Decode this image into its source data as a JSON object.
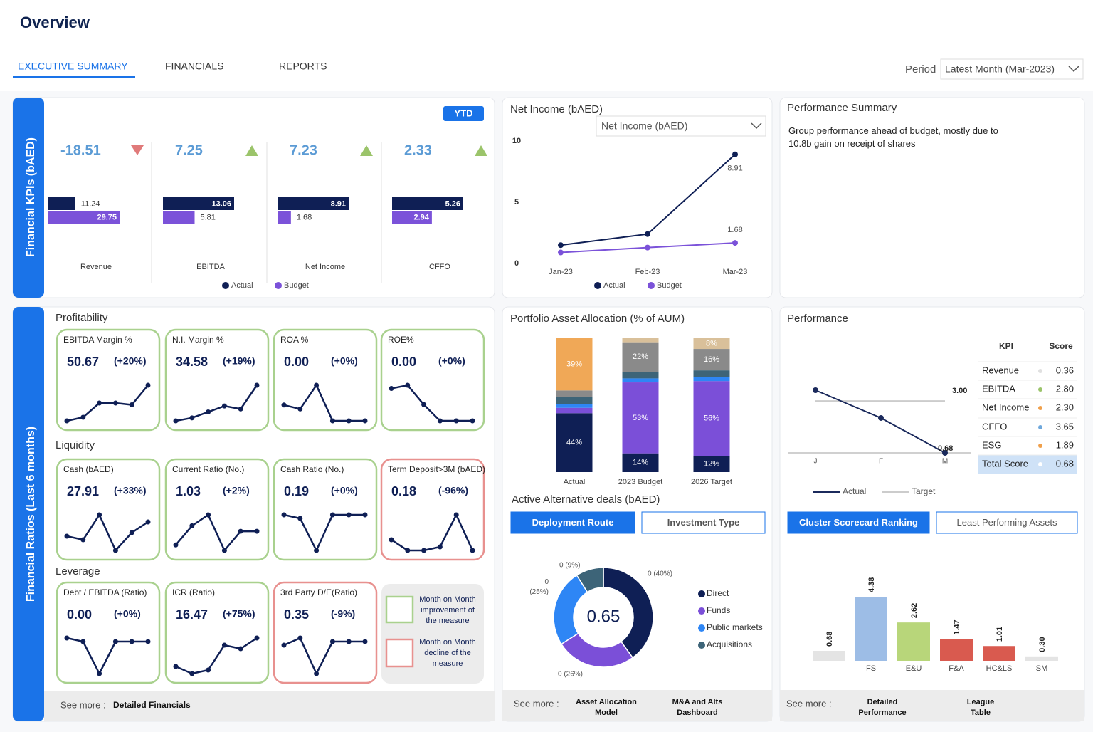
{
  "header": {
    "title": "Overview",
    "tabs": [
      "EXECUTIVE SUMMARY",
      "FINANCIALS",
      "REPORTS"
    ],
    "active_tab": 0,
    "period_label": "Period",
    "period_value": "Latest Month (Mar-2023)"
  },
  "financial_kpis": {
    "side_title": "Financial KPIs (bAED)",
    "badge": "YTD",
    "items": [
      {
        "name": "Revenue",
        "value": -18.51,
        "trend": "down",
        "actual": 11.24,
        "budget": 29.75
      },
      {
        "name": "EBITDA",
        "value": 7.25,
        "trend": "up",
        "actual": 13.06,
        "budget": 5.81
      },
      {
        "name": "Net Income",
        "value": 7.23,
        "trend": "up",
        "actual": 8.91,
        "budget": 1.68
      },
      {
        "name": "CFFO",
        "value": 2.33,
        "trend": "up",
        "actual": 5.26,
        "budget": 2.94
      }
    ],
    "legend": [
      {
        "name": "Actual",
        "color": "#0f1f55"
      },
      {
        "name": "Budget",
        "color": "#7b52d9"
      }
    ]
  },
  "net_income": {
    "title": "Net Income (bAED)",
    "selector": "Net Income (bAED)",
    "chart_data": {
      "type": "line",
      "categories": [
        "Jan-23",
        "Feb-23",
        "Mar-23"
      ],
      "series": [
        {
          "name": "Actual",
          "color": "#0f1f55",
          "values": [
            1.5,
            2.4,
            8.91
          ],
          "value_labels": [
            null,
            null,
            "8.91"
          ]
        },
        {
          "name": "Budget",
          "color": "#7b52d9",
          "values": [
            0.9,
            1.3,
            1.68
          ],
          "value_labels": [
            null,
            null,
            "1.68"
          ]
        }
      ],
      "ylim": [
        0,
        10
      ],
      "yticks": [
        0,
        5,
        10
      ]
    }
  },
  "performance_summary": {
    "title": "Performance Summary",
    "text": "Group performance ahead of budget, mostly due to 10.8b gain on receipt of shares"
  },
  "financial_ratios": {
    "side_title": "Financial Ratios (Last 6 months)",
    "groups": [
      {
        "title": "Profitability",
        "cards": [
          {
            "name": "EBITDA Margin %",
            "value": "50.67",
            "change": "(+20%)",
            "status": "improve",
            "trend": [
              0,
              1,
              5,
              5,
              4.5,
              10
            ]
          },
          {
            "name": "N.I. Margin %",
            "value": "34.58",
            "change": "(+19%)",
            "status": "improve",
            "trend": [
              0,
              1,
              3,
              5,
              4,
              12
            ]
          },
          {
            "name": "ROA %",
            "value": "0.00",
            "change": "(+0%)",
            "status": "improve",
            "trend": [
              4,
              3,
              9,
              0,
              0,
              0
            ]
          },
          {
            "name": "ROE%",
            "value": "0.00",
            "change": "(+0%)",
            "status": "improve",
            "trend": [
              10,
              11,
              5,
              0,
              0,
              0
            ]
          }
        ]
      },
      {
        "title": "Liquidity",
        "cards": [
          {
            "name": "Cash (bAED)",
            "value": "27.91",
            "change": "(+33%)",
            "status": "improve",
            "trend": [
              4,
              3,
              10,
              0,
              5,
              8
            ]
          },
          {
            "name": "Current Ratio (No.)",
            "value": "1.03",
            "change": "(+2%)",
            "status": "improve",
            "trend": [
              2,
              9,
              13,
              0,
              7,
              7
            ]
          },
          {
            "name": "Cash Ratio (No.)",
            "value": "0.19",
            "change": "(+0%)",
            "status": "improve",
            "trend": [
              10,
              9,
              0,
              10,
              10,
              10
            ]
          },
          {
            "name": "Term Deposit>3M (bAED)",
            "value": "0.18",
            "change": "(-96%)",
            "status": "decline",
            "trend": [
              3,
              0,
              0,
              1,
              10,
              0
            ]
          }
        ]
      },
      {
        "title": "Leverage",
        "cards": [
          {
            "name": "Debt / EBITDA (Ratio)",
            "value": "0.00",
            "change": "(+0%)",
            "status": "improve",
            "trend": [
              10,
              9,
              0,
              9,
              9,
              9
            ]
          },
          {
            "name": "ICR (Ratio)",
            "value": "16.47",
            "change": "(+75%)",
            "status": "improve",
            "trend": [
              2,
              0,
              1,
              8,
              7,
              10
            ]
          },
          {
            "name": "3rd Party D/E(Ratio)",
            "value": "0.35",
            "change": "(-9%)",
            "status": "decline",
            "trend": [
              8,
              10,
              0,
              9,
              9,
              9
            ]
          }
        ]
      }
    ],
    "legend": [
      "Month on Month improvement of the measure",
      "Month on Month decline of the measure"
    ],
    "footer": {
      "label": "See more :",
      "links": [
        "Detailed Financials"
      ]
    }
  },
  "portfolio": {
    "title": "Portfolio Asset Allocation (% of AUM)",
    "chart_data": {
      "type": "stacked_bar",
      "categories": [
        "Actual",
        "2023 Budget",
        "2026 Target"
      ],
      "series": [
        {
          "color": "#0f1f55",
          "values": [
            44,
            14,
            12
          ],
          "value_labels": [
            "44%",
            "14%",
            "12%"
          ]
        },
        {
          "color": "#7b4fd8",
          "values": [
            4,
            53,
            56
          ],
          "value_labels": [
            null,
            "53%",
            "56%"
          ]
        },
        {
          "color": "#2e86f5",
          "values": [
            3,
            3,
            3
          ],
          "value_labels": [
            null,
            null,
            null
          ]
        },
        {
          "color": "#3d6478",
          "values": [
            5,
            5,
            5
          ],
          "value_labels": [
            null,
            null,
            null
          ]
        },
        {
          "color": "#8a8a8a",
          "values": [
            5,
            22,
            16
          ],
          "value_labels": [
            null,
            "22%",
            "16%"
          ]
        },
        {
          "color": "#f0a857",
          "values": [
            39,
            0,
            0
          ],
          "value_labels": [
            "39%",
            null,
            null
          ]
        },
        {
          "color": "#d9c09a",
          "values": [
            0,
            3,
            8
          ],
          "value_labels": [
            null,
            null,
            "8%"
          ]
        }
      ]
    }
  },
  "alternative_deals": {
    "title": "Active Alternative deals (bAED)",
    "buttons": [
      "Deployment Route",
      "Investment Type"
    ],
    "active_button": 0,
    "chart_data": {
      "type": "donut",
      "center_label": "0.65",
      "categories": [
        "Direct",
        "Funds",
        "Public markets",
        "Acquisitions"
      ],
      "colors": [
        "#0f1f55",
        "#7b4fd8",
        "#2e86f5",
        "#3d6478"
      ],
      "values": [
        40,
        26,
        25,
        9
      ],
      "value_labels": [
        "0 (40%)",
        "0 (26%)",
        "0 (25%)",
        "0 (9%)"
      ]
    },
    "footer": {
      "label": "See more :",
      "links": [
        "Asset Allocation Model",
        "M&A and Alts Dashboard"
      ]
    }
  },
  "performance": {
    "title": "Performance",
    "chart_data": {
      "type": "line",
      "categories": [
        "J",
        "F",
        "M"
      ],
      "series": [
        {
          "name": "Actual",
          "color": "#1b2a5c",
          "values": [
            3.48,
            2.24,
            0.68
          ],
          "value_labels": [
            null,
            null,
            "0.68"
          ]
        },
        {
          "name": "Target",
          "color": "#cccccc",
          "values": [
            3,
            3,
            3
          ],
          "value_labels": [
            null,
            null,
            "3.00"
          ]
        }
      ]
    },
    "table": {
      "columns": [
        "KPI",
        "Score"
      ],
      "rows": [
        [
          "Revenue",
          "0.36"
        ],
        [
          "EBITDA",
          "2.80"
        ],
        [
          "Net Income",
          "2.30"
        ],
        [
          "CFFO",
          "3.65"
        ],
        [
          "ESG",
          "1.89"
        ],
        [
          "Total Score",
          "0.68"
        ]
      ],
      "dot_colors": [
        "#e0e0e0",
        "#9bc46a",
        "#f0a04b",
        "#6fa8dc",
        "#f0a04b",
        "#ffffff"
      ],
      "highlight_row": 5
    },
    "buttons": [
      "Cluster Scorecard Ranking",
      "Least Performing Assets"
    ],
    "active_button": 0,
    "ranking": {
      "type": "bar",
      "categories": [
        null,
        "FS",
        "E&U",
        "F&A",
        "HC&LS",
        "SM"
      ],
      "values": [
        0.68,
        4.38,
        2.62,
        1.47,
        1.01,
        0.3
      ],
      "value_labels": [
        "0.68",
        "4.38",
        "2.62",
        "1.47",
        "1.01",
        "0.30"
      ],
      "colors": [
        "#e4e4e4",
        "#9dbde6",
        "#b8d67a",
        "#d95a4f",
        "#d95a4f",
        "#e4e4e4"
      ]
    },
    "footer": {
      "label": "See more :",
      "links": [
        "Detailed Performance",
        "League Table"
      ]
    }
  }
}
